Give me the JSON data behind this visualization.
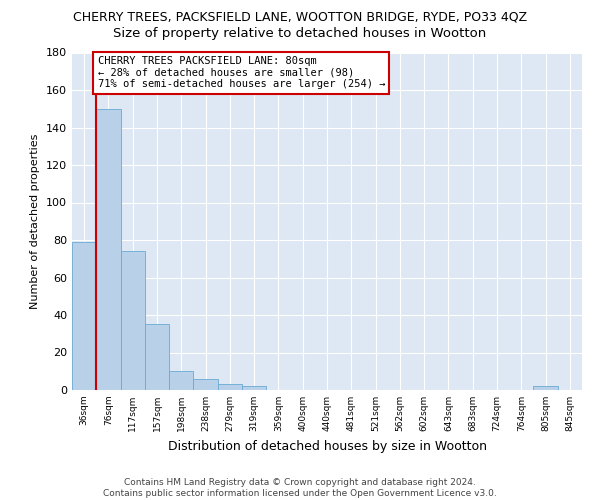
{
  "title": "CHERRY TREES, PACKSFIELD LANE, WOOTTON BRIDGE, RYDE, PO33 4QZ",
  "subtitle": "Size of property relative to detached houses in Wootton",
  "xlabel": "Distribution of detached houses by size in Wootton",
  "ylabel": "Number of detached properties",
  "categories": [
    "36sqm",
    "76sqm",
    "117sqm",
    "157sqm",
    "198sqm",
    "238sqm",
    "279sqm",
    "319sqm",
    "359sqm",
    "400sqm",
    "440sqm",
    "481sqm",
    "521sqm",
    "562sqm",
    "602sqm",
    "643sqm",
    "683sqm",
    "724sqm",
    "764sqm",
    "805sqm",
    "845sqm"
  ],
  "values": [
    79,
    150,
    74,
    35,
    10,
    6,
    3,
    2,
    0,
    0,
    0,
    0,
    0,
    0,
    0,
    0,
    0,
    0,
    0,
    2,
    0
  ],
  "bar_color": "#b8d0e8",
  "bar_edge_color": "#6aaad4",
  "subject_line_color": "#cc0000",
  "annotation_line1": "CHERRY TREES PACKSFIELD LANE: 80sqm",
  "annotation_line2": "← 28% of detached houses are smaller (98)",
  "annotation_line3": "71% of semi-detached houses are larger (254) →",
  "annotation_box_color": "#ffffff",
  "annotation_box_edge_color": "#cc0000",
  "ylim": [
    0,
    180
  ],
  "yticks": [
    0,
    20,
    40,
    60,
    80,
    100,
    120,
    140,
    160,
    180
  ],
  "plot_bg_color": "#dde8f4",
  "fig_bg_color": "#ffffff",
  "grid_color": "#ffffff",
  "footer_text": "Contains HM Land Registry data © Crown copyright and database right 2024.\nContains public sector information licensed under the Open Government Licence v3.0.",
  "title_fontsize": 9,
  "subtitle_fontsize": 9.5,
  "annotation_fontsize": 7.5,
  "footer_fontsize": 6.5,
  "ylabel_fontsize": 8,
  "xlabel_fontsize": 9
}
